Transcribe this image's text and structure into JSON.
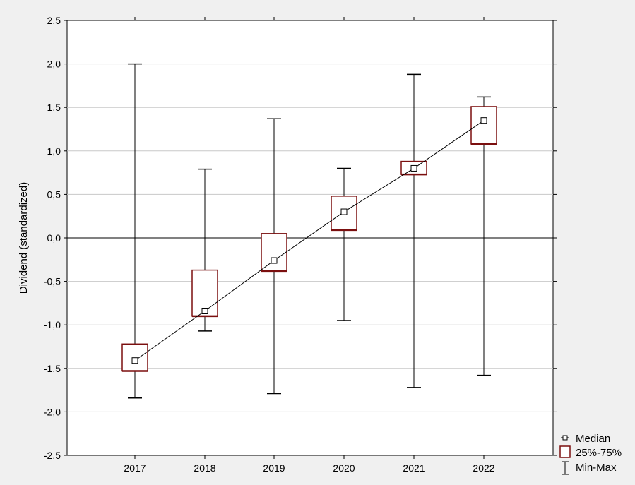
{
  "chart_data": {
    "type": "boxplot",
    "categories": [
      "2017",
      "2018",
      "2019",
      "2020",
      "2021",
      "2022"
    ],
    "median": [
      -1.41,
      -0.84,
      -0.26,
      0.3,
      0.8,
      1.35
    ],
    "q1": [
      -1.53,
      -0.9,
      -0.38,
      0.09,
      0.73,
      1.08
    ],
    "q3": [
      -1.22,
      -0.37,
      0.05,
      0.48,
      0.88,
      1.51
    ],
    "min": [
      -1.84,
      -1.07,
      -1.79,
      -0.95,
      -1.72,
      -1.58
    ],
    "max": [
      2.0,
      0.79,
      1.37,
      0.8,
      1.88,
      1.62
    ],
    "ylabel": "Dividend (standardized)",
    "xlabel": "",
    "ylim": [
      -2.5,
      2.5
    ],
    "yticks": [
      -2.5,
      -2.0,
      -1.5,
      -1.0,
      -0.5,
      0.0,
      0.5,
      1.0,
      1.5,
      2.0,
      2.5
    ],
    "ytick_labels": [
      "-2,5",
      "-2,0",
      "-1,5",
      "-1,0",
      "-0,5",
      "0,0",
      "0,5",
      "1,0",
      "1,5",
      "2,0",
      "2,5"
    ],
    "grid": true,
    "median_line_connected": true,
    "legend": {
      "position": "bottom-right",
      "entries": [
        "Median",
        "25%-75%",
        "Min-Max"
      ]
    },
    "colors": {
      "box": "#7b0f0f",
      "line": "#000000",
      "grid": "#c8c8c8",
      "plot_bg": "#ffffff",
      "page_bg": "#f0f0f0"
    }
  }
}
